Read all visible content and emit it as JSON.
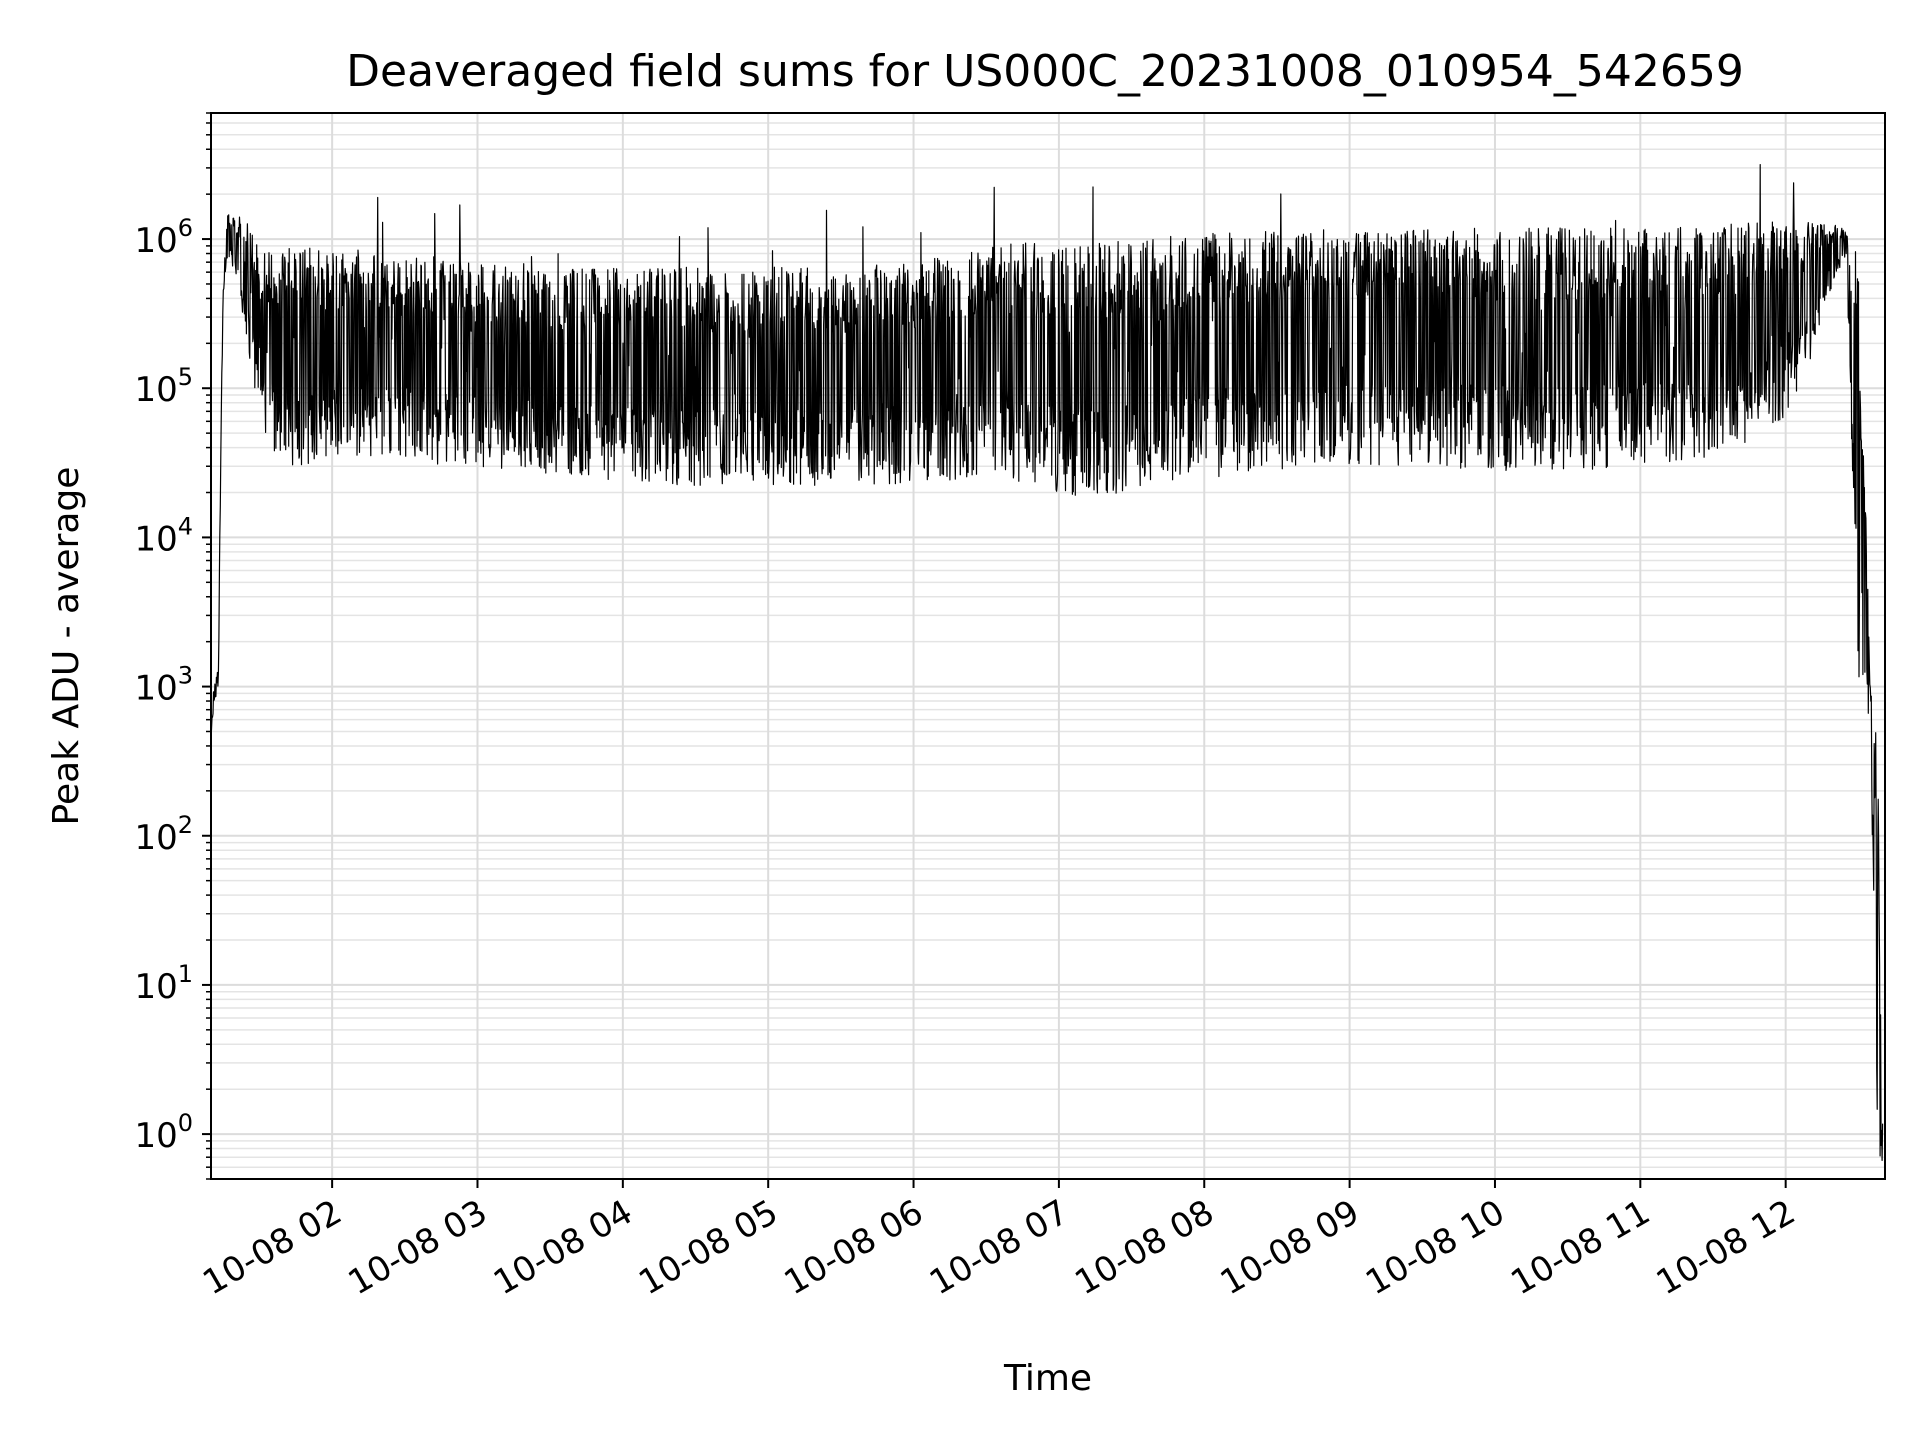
{
  "chart_data": {
    "type": "line",
    "title": "Deaveraged field sums for US000C_20231008_010954_542659",
    "xlabel": "Time",
    "ylabel": "Peak ADU - average",
    "y_scale": "log",
    "ylim": [
      0.5,
      7000000
    ],
    "xlim": [
      "2023-10-08 01:10",
      "2023-10-08 12:41"
    ],
    "grid": true,
    "line_color": "#000000",
    "x_tick_labels": [
      "10-08 02",
      "10-08 03",
      "10-08 04",
      "10-08 05",
      "10-08 06",
      "10-08 07",
      "10-08 08",
      "10-08 09",
      "10-08 10",
      "10-08 11",
      "10-08 12"
    ],
    "y_tick_labels": [
      {
        "base": "10",
        "exp": "0"
      },
      {
        "base": "10",
        "exp": "1"
      },
      {
        "base": "10",
        "exp": "2"
      },
      {
        "base": "10",
        "exp": "3"
      },
      {
        "base": "10",
        "exp": "4"
      },
      {
        "base": "10",
        "exp": "5"
      },
      {
        "base": "10",
        "exp": "6"
      }
    ],
    "series": [
      {
        "x": [
          "2023-10-08 01:10",
          "2023-10-08 01:11",
          "2023-10-08 01:13",
          "2023-10-08 01:15",
          "2023-10-08 01:17",
          "2023-10-08 01:20",
          "2023-10-08 01:22",
          "2023-10-08 01:25",
          "2023-10-08 01:30",
          "2023-10-08 01:35",
          "2023-10-08 01:40",
          "2023-10-08 01:45",
          "2023-10-08 01:50",
          "2023-10-08 02:00",
          "2023-10-08 02:10",
          "2023-10-08 02:20",
          "2023-10-08 02:30",
          "2023-10-08 02:45",
          "2023-10-08 03:00",
          "2023-10-08 03:15",
          "2023-10-08 03:30",
          "2023-10-08 03:45",
          "2023-10-08 04:00",
          "2023-10-08 04:30",
          "2023-10-08 05:00",
          "2023-10-08 05:30",
          "2023-10-08 06:00",
          "2023-10-08 06:30",
          "2023-10-08 06:50",
          "2023-10-08 07:00",
          "2023-10-08 07:15",
          "2023-10-08 07:30",
          "2023-10-08 07:45",
          "2023-10-08 08:00",
          "2023-10-08 08:30",
          "2023-10-08 09:00",
          "2023-10-08 09:30",
          "2023-10-08 10:00",
          "2023-10-08 10:30",
          "2023-10-08 11:00",
          "2023-10-08 11:15",
          "2023-10-08 11:30",
          "2023-10-08 11:45",
          "2023-10-08 12:00",
          "2023-10-08 12:10",
          "2023-10-08 12:20",
          "2023-10-08 12:25",
          "2023-10-08 12:30",
          "2023-10-08 12:35",
          "2023-10-08 12:38",
          "2023-10-08 12:40"
        ],
        "y_upper": [
          450,
          1000,
          1400,
          800000,
          1500000,
          1500000,
          1400000,
          1300000,
          1000000,
          900000,
          900000,
          900000,
          900000,
          900000,
          850000,
          800000,
          800000,
          750000,
          700000,
          700000,
          650000,
          650000,
          650000,
          650000,
          650000,
          650000,
          700000,
          900000,
          950000,
          950000,
          950000,
          1000000,
          1050000,
          1100000,
          1150000,
          1200000,
          1200000,
          1200000,
          1200000,
          1200000,
          1250000,
          1250000,
          1300000,
          1300000,
          1300000,
          1250000,
          1150000,
          1000000,
          1000,
          400,
          1.3
        ],
        "y_lower": [
          450,
          700,
          1000,
          400000,
          700000,
          600000,
          400000,
          200000,
          60000,
          40000,
          30000,
          30000,
          30000,
          35000,
          35000,
          35000,
          35000,
          30000,
          30000,
          28000,
          26000,
          25000,
          24000,
          22000,
          22000,
          22000,
          23000,
          25000,
          22000,
          20000,
          18000,
          20000,
          22000,
          24000,
          28000,
          30000,
          30000,
          28000,
          28000,
          30000,
          32000,
          35000,
          40000,
          60000,
          150000,
          500000,
          800000,
          1000,
          400,
          0.9,
          0.5
        ]
      }
    ]
  }
}
